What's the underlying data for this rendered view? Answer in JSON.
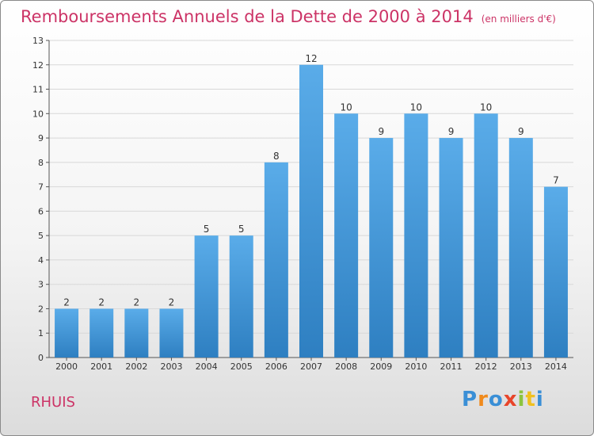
{
  "title": "Remboursements Annuels de la Dette de 2000 à 2014",
  "unit": "(en milliers d'€)",
  "commune": "RHUIS",
  "logo_text": "Proxiti",
  "colors": {
    "title": "#cc3366",
    "bar_top": "#5aace9",
    "bar_bottom": "#2e7fc1",
    "grid": "#d8d8d8"
  },
  "chart_data": {
    "type": "bar",
    "categories": [
      "2000",
      "2001",
      "2002",
      "2003",
      "2004",
      "2005",
      "2006",
      "2007",
      "2008",
      "2009",
      "2010",
      "2011",
      "2012",
      "2013",
      "2014"
    ],
    "values": [
      2,
      2,
      2,
      2,
      5,
      5,
      8,
      12,
      10,
      9,
      10,
      9,
      10,
      9,
      7
    ],
    "ylim": [
      0,
      13
    ],
    "yticks": [
      0,
      1,
      2,
      3,
      4,
      5,
      6,
      7,
      8,
      9,
      10,
      11,
      12,
      13
    ],
    "grid": true,
    "title": "Remboursements Annuels de la Dette de 2000 à 2014",
    "xlabel": "",
    "ylabel": ""
  }
}
